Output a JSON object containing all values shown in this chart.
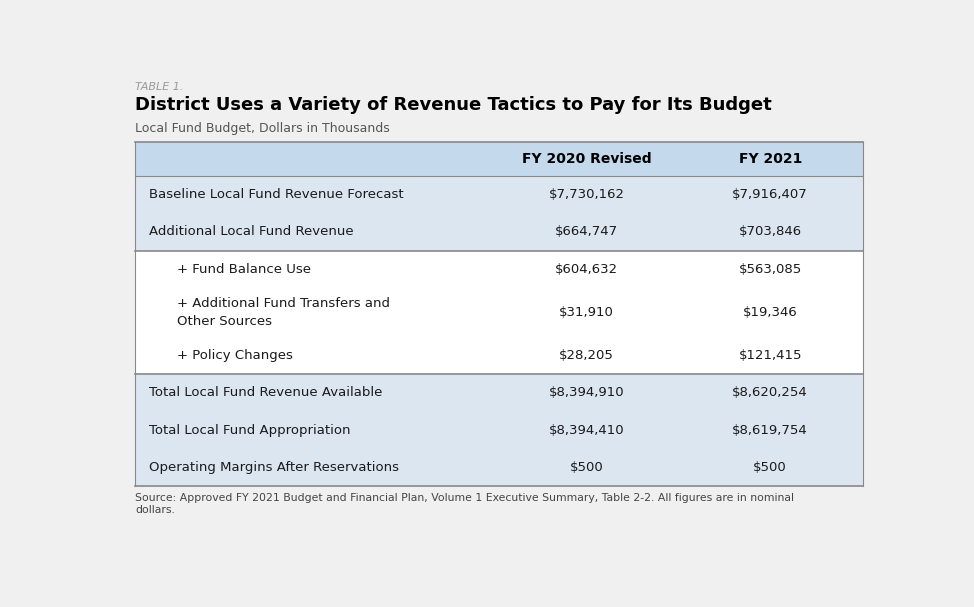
{
  "table_label": "TABLE 1.",
  "title": "District Uses a Variety of Revenue Tactics to Pay for Its Budget",
  "subtitle": "Local Fund Budget, Dollars in Thousands",
  "col_headers": [
    "",
    "FY 2020 Revised",
    "FY 2021"
  ],
  "rows": [
    {
      "label": "Baseline Local Fund Revenue Forecast",
      "fy2020": "$7,730,162",
      "fy2021": "$7,916,407",
      "indent": false,
      "bold": false,
      "separator_above": false,
      "bg": "light_blue"
    },
    {
      "label": "Additional Local Fund Revenue",
      "fy2020": "$664,747",
      "fy2021": "$703,846",
      "indent": false,
      "bold": false,
      "separator_above": false,
      "bg": "light_blue"
    },
    {
      "label": "+ Fund Balance Use",
      "fy2020": "$604,632",
      "fy2021": "$563,085",
      "indent": true,
      "bold": false,
      "separator_above": true,
      "bg": "white"
    },
    {
      "label": "+ Additional Fund Transfers and\nOther Sources",
      "fy2020": "$31,910",
      "fy2021": "$19,346",
      "indent": true,
      "bold": false,
      "separator_above": false,
      "bg": "white"
    },
    {
      "label": "+ Policy Changes",
      "fy2020": "$28,205",
      "fy2021": "$121,415",
      "indent": true,
      "bold": false,
      "separator_above": false,
      "bg": "white"
    },
    {
      "label": "Total Local Fund Revenue Available",
      "fy2020": "$8,394,910",
      "fy2021": "$8,620,254",
      "indent": false,
      "bold": false,
      "separator_above": true,
      "bg": "light_blue"
    },
    {
      "label": "Total Local Fund Appropriation",
      "fy2020": "$8,394,410",
      "fy2021": "$8,619,754",
      "indent": false,
      "bold": false,
      "separator_above": false,
      "bg": "light_blue"
    },
    {
      "label": "Operating Margins After Reservations",
      "fy2020": "$500",
      "fy2021": "$500",
      "indent": false,
      "bold": false,
      "separator_above": false,
      "bg": "light_blue"
    }
  ],
  "source_text": "Source: Approved FY 2021 Budget and Financial Plan, Volume 1 Executive Summary, Table 2-2. All figures are in nominal\ndollars.",
  "header_bg": "#c5d9ed",
  "light_blue_bg": "#dce6f1",
  "white_bg": "#ffffff",
  "outer_bg": "#f0f0f0",
  "sep_color_dark": "#888888",
  "sep_color_light": "#bbbbbb",
  "text_color": "#1a1a1a",
  "header_text_color": "#000000",
  "title_color": "#000000",
  "table_label_color": "#999999"
}
